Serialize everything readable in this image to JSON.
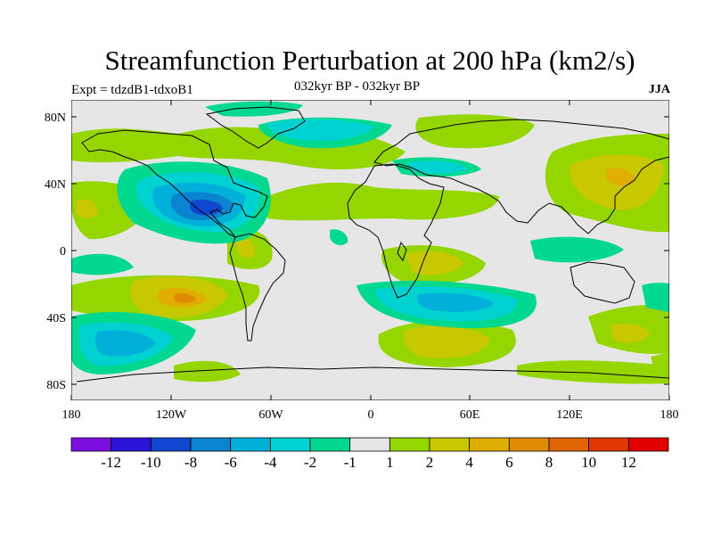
{
  "title": "Streamfunction Perturbation at 200 hPa (km2/s)",
  "left_label": "Expt = tdzdB1-tdxoB1",
  "center_label": "032kyr BP - 032kyr BP",
  "right_label": "JJA",
  "lat_ticks": [
    "80N",
    "40N",
    "0",
    "40S",
    "80S"
  ],
  "lon_ticks": [
    "180",
    "120W",
    "60W",
    "0",
    "60E",
    "120E",
    "180"
  ],
  "colorbar": {
    "colors": [
      "#7d0ee0",
      "#2a14d8",
      "#1047d0",
      "#0a84d0",
      "#00b0d8",
      "#00d2d2",
      "#00d890",
      "#e6e6e6",
      "#96d600",
      "#c8c800",
      "#e0ae00",
      "#e08a00",
      "#e06400",
      "#e03800",
      "#e00000"
    ],
    "labels": [
      "-12",
      "-10",
      "-8",
      "-6",
      "-4",
      "-2",
      "-1",
      "1",
      "2",
      "4",
      "6",
      "8",
      "10",
      "12"
    ]
  }
}
